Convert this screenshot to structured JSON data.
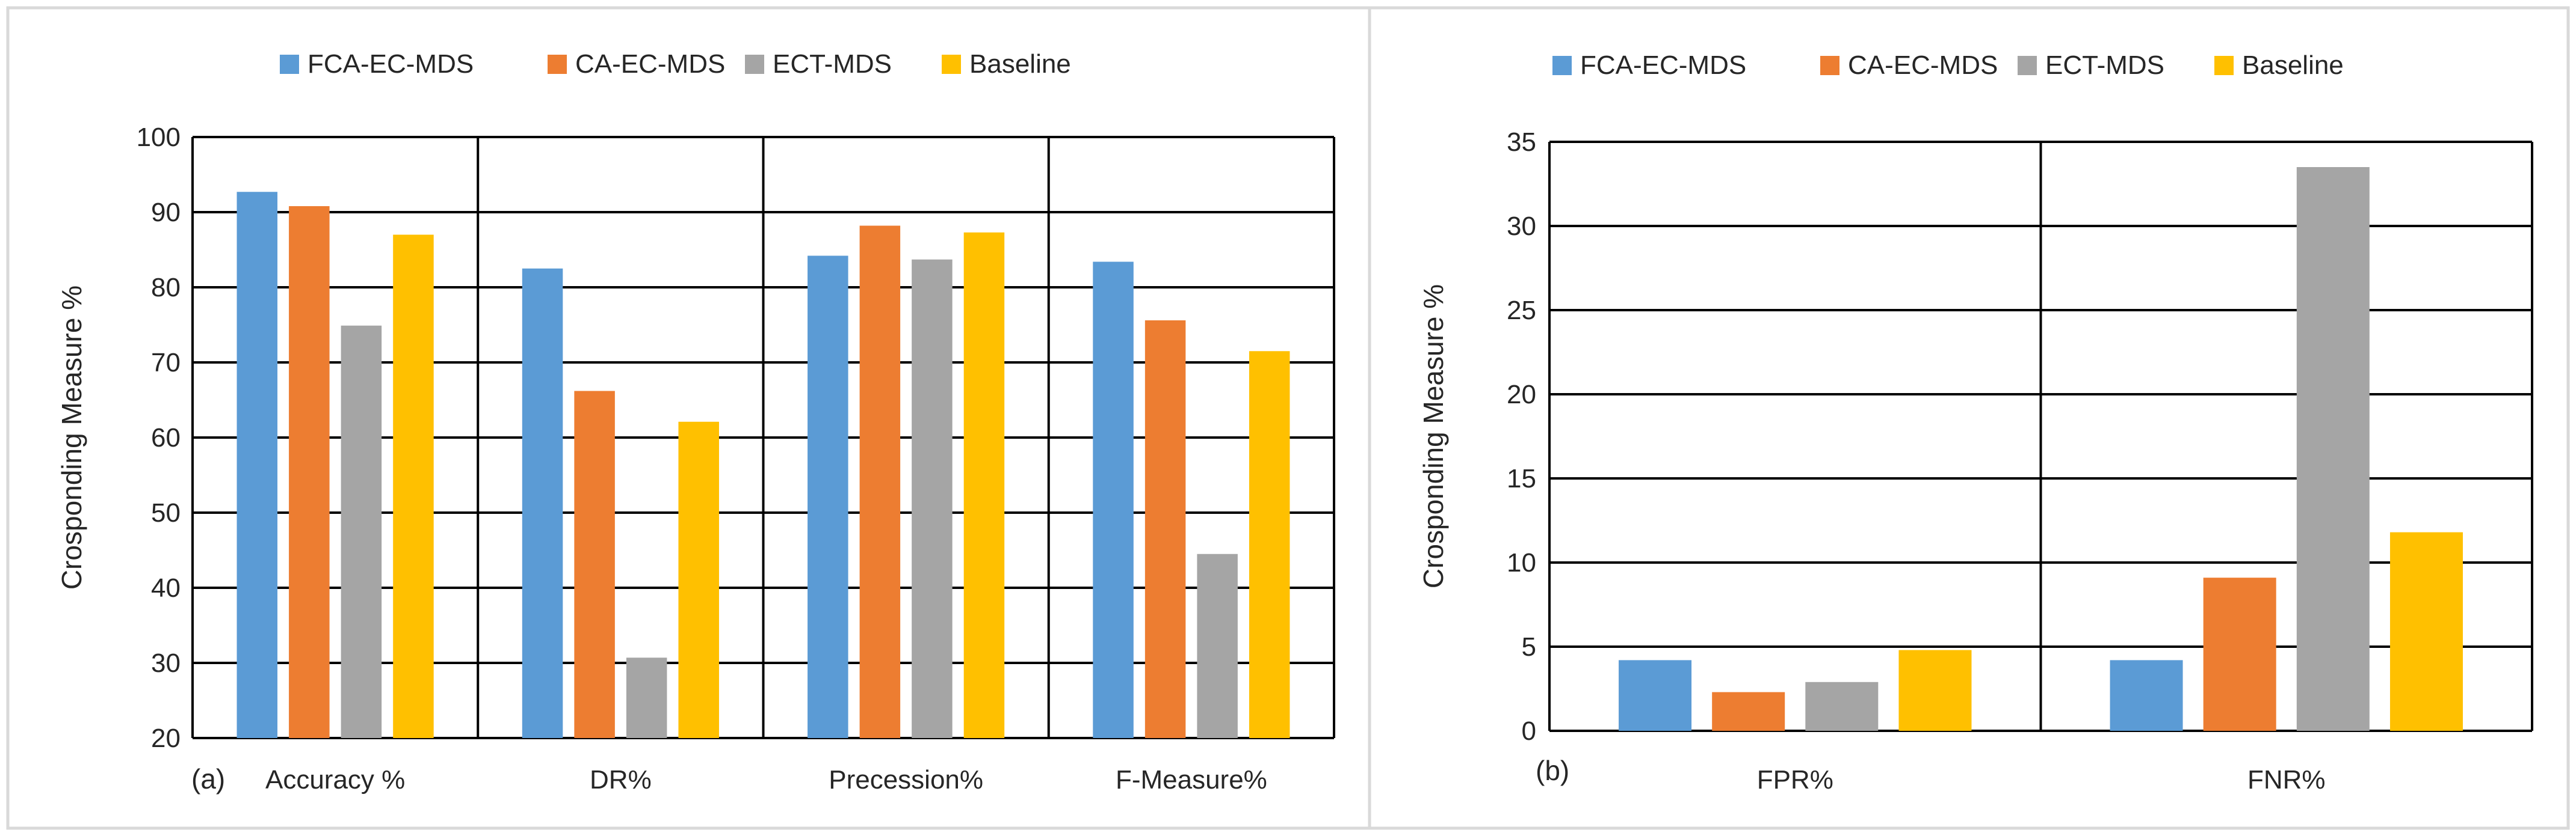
{
  "colors": {
    "series": [
      "#5B9BD5",
      "#ED7D31",
      "#A5A5A5",
      "#FFC000"
    ],
    "grid": "#000000",
    "panel_border": "#D9D9D9",
    "text": "#262626"
  },
  "chart_data": [
    {
      "type": "bar",
      "panel_label": "(a)",
      "categories": [
        "Accuracy %",
        "DR%",
        "Precession%",
        "F-Measure%"
      ],
      "series": [
        {
          "name": "FCA-EC-MDS",
          "values": [
            92.7,
            82.5,
            84.2,
            83.4
          ]
        },
        {
          "name": "CA-EC-MDS",
          "values": [
            90.8,
            66.2,
            88.2,
            75.6
          ]
        },
        {
          "name": "ECT-MDS",
          "values": [
            74.9,
            30.7,
            83.7,
            44.5
          ]
        },
        {
          "name": "Baseline",
          "values": [
            87.0,
            62.1,
            87.3,
            71.5
          ]
        }
      ],
      "ylabel": "Crosponding Measure %",
      "xlabel": "",
      "ylim": [
        20,
        100
      ],
      "yticks": [
        20,
        30,
        40,
        50,
        60,
        70,
        80,
        90,
        100
      ],
      "grid": true,
      "legend_position": "top"
    },
    {
      "type": "bar",
      "panel_label": "(b)",
      "categories": [
        "FPR%",
        "FNR%"
      ],
      "series": [
        {
          "name": "FCA-EC-MDS",
          "values": [
            4.2,
            4.2
          ]
        },
        {
          "name": "CA-EC-MDS",
          "values": [
            2.3,
            9.1
          ]
        },
        {
          "name": "ECT-MDS",
          "values": [
            2.9,
            33.5
          ]
        },
        {
          "name": "Baseline",
          "values": [
            4.8,
            11.8
          ]
        }
      ],
      "ylabel": "Crosponding Measure %",
      "xlabel": "",
      "ylim": [
        0,
        35
      ],
      "yticks": [
        0,
        5,
        10,
        15,
        20,
        25,
        30,
        35
      ],
      "grid": true,
      "legend_position": "top"
    }
  ]
}
